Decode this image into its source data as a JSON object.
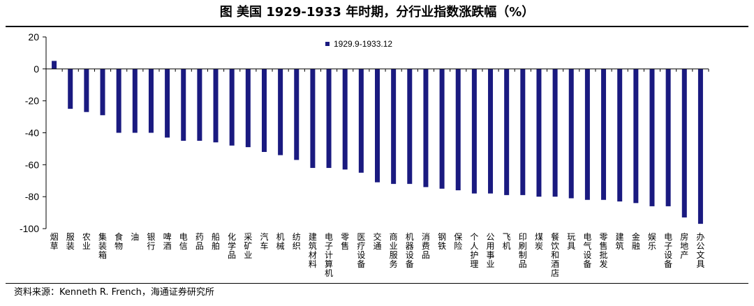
{
  "title": "图  美国 1929-1933 年时期，分行业指数涨跌幅（%）",
  "source": "资料来源：Kenneth R. French，海通证券研究所",
  "colors": {
    "bar": "#1a1a80",
    "axis": "#000000"
  },
  "chart_data": {
    "type": "bar",
    "ylim": [
      -100,
      20
    ],
    "yticks": [
      20,
      0,
      -20,
      -40,
      -60,
      -80,
      -100
    ],
    "legend": {
      "position": "top-left",
      "labels": [
        "1929.9-1933.12"
      ]
    },
    "grid": false,
    "xlabel": "",
    "ylabel": "",
    "categories": [
      "烟草",
      "服装",
      "农业",
      "集装箱",
      "食物",
      "油",
      "银行",
      "啤酒",
      "电信",
      "药品",
      "船舶",
      "化学品",
      "采矿业",
      "汽车",
      "机械",
      "纺织",
      "建筑材料",
      "电子计算机",
      "零售",
      "医疗设备",
      "交通",
      "商业服务",
      "机器设备",
      "消费品",
      "钢铁",
      "保险",
      "个人护理",
      "公用事业",
      "飞机",
      "印刷制品",
      "煤炭",
      "餐饮和酒店",
      "玩具",
      "电气设备",
      "零售批发",
      "建筑",
      "金融",
      "娱乐",
      "电子设备",
      "房地产",
      "办公文具"
    ],
    "series": [
      {
        "name": "1929.9-1933.12",
        "values": [
          5,
          -25,
          -27,
          -29,
          -40,
          -40,
          -40,
          -43,
          -45,
          -45,
          -46,
          -48,
          -49,
          -52,
          -54,
          -57,
          -62,
          -62,
          -63,
          -65,
          -71,
          -72,
          -72,
          -74,
          -75,
          -76,
          -78,
          -78,
          -79,
          -79,
          -80,
          -80,
          -81,
          -82,
          -82,
          -83,
          -84,
          -86,
          -86,
          -93,
          -97
        ]
      }
    ]
  }
}
